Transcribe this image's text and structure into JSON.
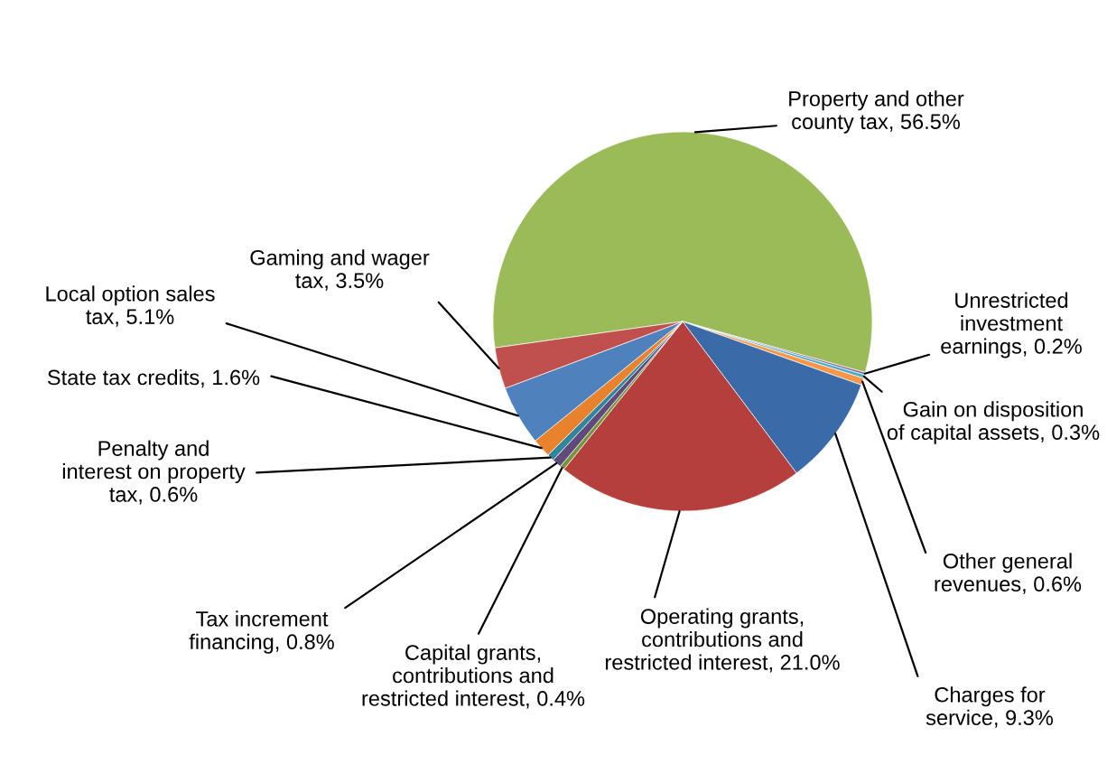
{
  "chart_data": {
    "type": "pie",
    "categories": [
      "Property and other\ncounty tax",
      "Unrestricted\ninvestment\nearnings",
      "Gain on disposition\nof capital assets",
      "Other general\nrevenues",
      "Charges for\nservice",
      "Operating grants,\ncontributions and\nrestricted interest",
      "Capital grants,\ncontributions and\nrestricted interest",
      "Tax increment\nfinancing",
      "Penalty and\ninterest on property\ntax",
      "State tax credits",
      "Local option sales\ntax",
      "Gaming and wager\ntax"
    ],
    "values": [
      56.5,
      0.2,
      0.3,
      0.6,
      9.3,
      21.0,
      0.4,
      0.8,
      0.6,
      1.6,
      5.1,
      3.5
    ],
    "value_labels": [
      "56.5%",
      "0.2%",
      "0.3%",
      "0.6%",
      "9.3%",
      "21.0%",
      "0.4%",
      "0.8%",
      "0.6%",
      "1.6%",
      "5.1%",
      "3.5%"
    ],
    "colors": [
      "#9bbb59",
      "#8064a2",
      "#4bacc6",
      "#f79646",
      "#3b6aa8",
      "#b43f3c",
      "#77933c",
      "#604a7b",
      "#31859c",
      "#e8822c",
      "#4f81bd",
      "#c0504d"
    ]
  }
}
